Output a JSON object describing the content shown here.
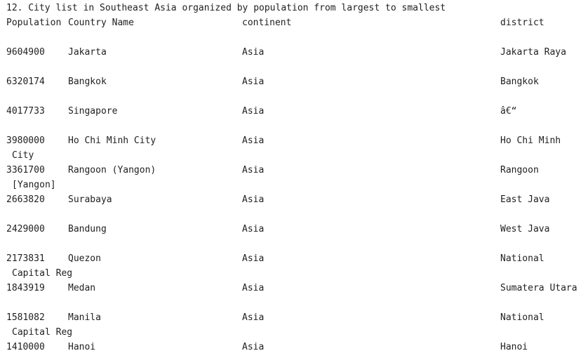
{
  "console": {
    "title": "12. City list in Southeast Asia organized by population from largest to smallest",
    "headers": {
      "col1": "Population",
      "col2": "Country Name",
      "col3": "continent",
      "col4": "district"
    },
    "rows": [
      {
        "population": "9604900",
        "name": "Jakarta",
        "continent": "Asia",
        "district": "Jakarta Raya",
        "wrap": ""
      },
      {
        "population": "6320174",
        "name": "Bangkok",
        "continent": "Asia",
        "district": "Bangkok",
        "wrap": ""
      },
      {
        "population": "4017733",
        "name": "Singapore",
        "continent": "Asia",
        "district": "â€“",
        "wrap": ""
      },
      {
        "population": "3980000",
        "name": "Ho Chi Minh City",
        "continent": "Asia",
        "district": "Ho Chi Minh",
        "wrap": "City"
      },
      {
        "population": "3361700",
        "name": "Rangoon (Yangon)",
        "continent": "Asia",
        "district": "Rangoon",
        "wrap": "[Yangon]"
      },
      {
        "population": "2663820",
        "name": "Surabaya",
        "continent": "Asia",
        "district": "East Java",
        "wrap": ""
      },
      {
        "population": "2429000",
        "name": "Bandung",
        "continent": "Asia",
        "district": "West Java",
        "wrap": ""
      },
      {
        "population": "2173831",
        "name": "Quezon",
        "continent": "Asia",
        "district": "National",
        "wrap": "Capital Reg"
      },
      {
        "population": "1843919",
        "name": "Medan",
        "continent": "Asia",
        "district": "Sumatera Utara",
        "wrap": ""
      },
      {
        "population": "1581082",
        "name": "Manila",
        "continent": "Asia",
        "district": "National",
        "wrap": "Capital Reg"
      },
      {
        "population": "1410000",
        "name": "Hanoi",
        "continent": "Asia",
        "district": "Hanoi",
        "wrap": ""
      }
    ]
  }
}
